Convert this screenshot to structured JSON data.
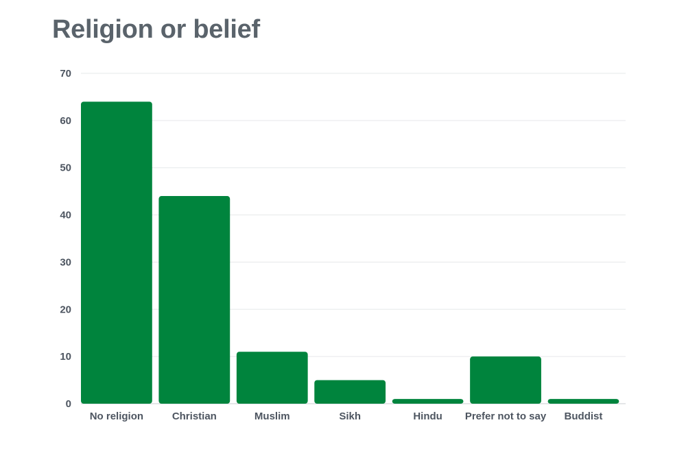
{
  "title": "Religion or belief",
  "colors": {
    "bar": "#00843d",
    "title": "#5a636b",
    "text": "#4d5560",
    "grid": "#e6e8ea"
  },
  "chart_data": {
    "type": "bar",
    "title": "Religion or belief",
    "xlabel": "",
    "ylabel": "",
    "categories": [
      "No religion",
      "Christian",
      "Muslim",
      "Sikh",
      "Hindu",
      "Prefer not to say",
      "Buddist"
    ],
    "values": [
      64,
      44,
      11,
      5,
      1,
      10,
      1
    ],
    "ylim": [
      0,
      70
    ],
    "yticks": [
      0,
      10,
      20,
      30,
      40,
      50,
      60,
      70
    ],
    "grid": true,
    "legend": "none"
  }
}
